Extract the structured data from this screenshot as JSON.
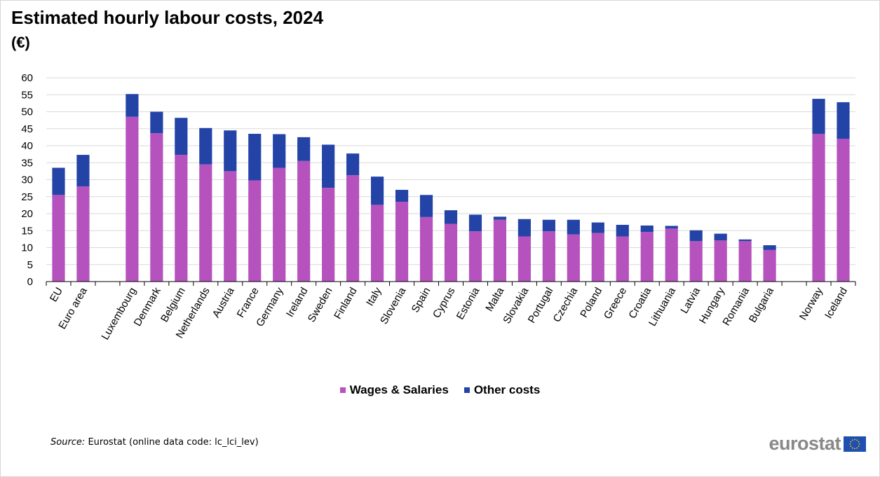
{
  "title": "Estimated hourly labour costs, 2024",
  "subtitle": "(€)",
  "source": {
    "label": "Source:",
    "text": "Eurostat (online data code: lc_lci_lev)"
  },
  "brand": {
    "word": "eurostat",
    "flag_icon": "eu-flag-icon"
  },
  "legend": [
    {
      "name": "Wages & Salaries",
      "color": "#b552bd"
    },
    {
      "name": "Other costs",
      "color": "#2443a6"
    }
  ],
  "chart_data": {
    "type": "bar",
    "stacked": true,
    "title": "Estimated hourly labour costs, 2024",
    "subtitle": "(€)",
    "xlabel": "",
    "ylabel": "",
    "ylim": [
      0,
      60
    ],
    "yticks": [
      0,
      5,
      10,
      15,
      20,
      25,
      30,
      35,
      40,
      45,
      50,
      55,
      60
    ],
    "grid": true,
    "legend_position": "bottom",
    "groups": [
      [
        "EU",
        "Euro area"
      ],
      [
        "Luxembourg",
        "Denmark",
        "Belgium",
        "Netherlands",
        "Austria",
        "France",
        "Germany",
        "Ireland",
        "Sweden",
        "Finland",
        "Italy",
        "Slovenia",
        "Spain",
        "Cyprus",
        "Estonia",
        "Malta",
        "Slovakia",
        "Portugal",
        "Czechia",
        "Poland",
        "Greece",
        "Croatia",
        "Lithuania",
        "Latvia",
        "Hungary",
        "Romania",
        "Bulgaria"
      ],
      [
        "Norway",
        "Iceland"
      ]
    ],
    "categories": [
      "EU",
      "Euro area",
      "Luxembourg",
      "Denmark",
      "Belgium",
      "Netherlands",
      "Austria",
      "France",
      "Germany",
      "Ireland",
      "Sweden",
      "Finland",
      "Italy",
      "Slovenia",
      "Spain",
      "Cyprus",
      "Estonia",
      "Malta",
      "Slovakia",
      "Portugal",
      "Czechia",
      "Poland",
      "Greece",
      "Croatia",
      "Lithuania",
      "Latvia",
      "Hungary",
      "Romania",
      "Bulgaria",
      "Norway",
      "Iceland"
    ],
    "series": [
      {
        "name": "Wages & Salaries",
        "color": "#b552bd",
        "values": [
          25.5,
          28,
          48.5,
          43.7,
          37.3,
          34.5,
          32.5,
          29.8,
          33.5,
          35.5,
          27.6,
          31.3,
          22.6,
          23.5,
          19,
          17,
          14.8,
          18.2,
          13.3,
          14.8,
          13.9,
          14.3,
          13.3,
          14.6,
          15.6,
          11.9,
          12.1,
          11.9,
          9.3,
          43.5,
          42
        ]
      },
      {
        "name": "Other costs",
        "color": "#2443a6",
        "values": [
          8,
          9.3,
          6.7,
          6.3,
          10.9,
          10.7,
          12,
          13.7,
          9.9,
          7,
          12.7,
          6.4,
          8.3,
          3.5,
          6.5,
          4,
          4.9,
          0.9,
          5.1,
          3.4,
          4.3,
          3.1,
          3.4,
          1.9,
          0.8,
          3.2,
          2,
          0.5,
          1.4,
          10.3,
          10.8
        ]
      }
    ]
  }
}
